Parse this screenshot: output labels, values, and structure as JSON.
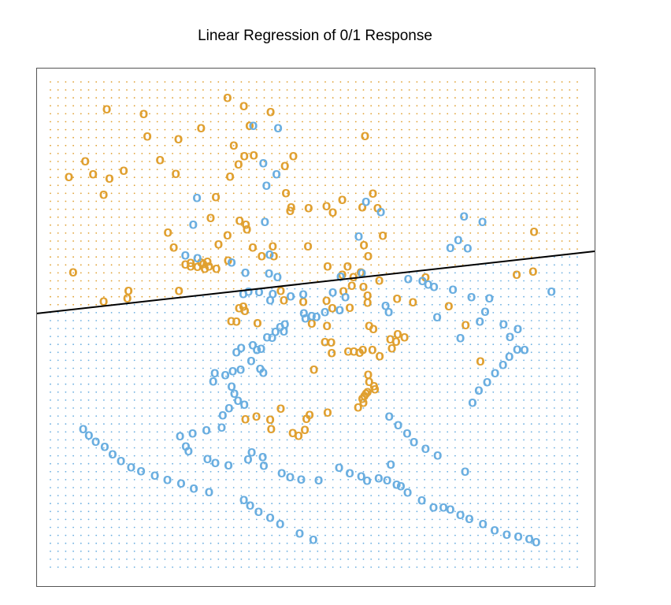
{
  "chart_data": {
    "type": "scatter",
    "title": "Linear Regression of 0/1 Response",
    "xlabel": "",
    "ylabel": "",
    "xlim": [
      0,
      100
    ],
    "ylim": [
      0,
      100
    ],
    "grid": false,
    "axes_shown": false,
    "marker_text": "o",
    "colors": {
      "class_0": "#6aaee0",
      "class_1": "#e0a030",
      "boundary": "#000000",
      "frame": "#555555"
    },
    "background_grid": {
      "nx": 70,
      "ny": 62
    },
    "decision_boundary": {
      "x": [
        0,
        100
      ],
      "y": [
        52.6,
        64.7
      ]
    },
    "series": [
      {
        "class": 1,
        "color": "#e0a030",
        "points": [
          [
            33.6,
            96.8
          ],
          [
            36.7,
            95.1
          ],
          [
            10.7,
            94.5
          ],
          [
            17.7,
            93.5
          ],
          [
            28.6,
            90.6
          ],
          [
            41.8,
            93.9
          ],
          [
            37.8,
            91.1
          ],
          [
            18.4,
            88.9
          ],
          [
            24.3,
            88.3
          ],
          [
            59.7,
            89.0
          ],
          [
            34.8,
            87.0
          ],
          [
            36.8,
            84.8
          ],
          [
            38.6,
            85.0
          ],
          [
            46.1,
            84.8
          ],
          [
            6.6,
            83.8
          ],
          [
            20.8,
            84.0
          ],
          [
            35.7,
            83.1
          ],
          [
            44.5,
            82.8
          ],
          [
            8.1,
            81.1
          ],
          [
            13.9,
            81.8
          ],
          [
            3.5,
            80.5
          ],
          [
            11.2,
            80.2
          ],
          [
            23.8,
            81.2
          ],
          [
            34.1,
            80.6
          ],
          [
            61.2,
            77.1
          ],
          [
            62.1,
            74.1
          ],
          [
            10.1,
            76.9
          ],
          [
            31.4,
            76.4
          ],
          [
            44.7,
            77.2
          ],
          [
            45.7,
            74.3
          ],
          [
            49.0,
            74.1
          ],
          [
            52.4,
            74.5
          ],
          [
            53.6,
            73.2
          ],
          [
            55.4,
            75.8
          ],
          [
            59.2,
            74.3
          ],
          [
            35.9,
            71.5
          ],
          [
            45.5,
            73.5
          ],
          [
            30.4,
            72.1
          ],
          [
            37.1,
            70.7
          ],
          [
            37.3,
            69.7
          ],
          [
            22.3,
            69.1
          ],
          [
            33.6,
            68.5
          ],
          [
            63.1,
            68.4
          ],
          [
            91.8,
            69.2
          ],
          [
            23.4,
            66.0
          ],
          [
            38.4,
            66.0
          ],
          [
            48.9,
            66.2
          ],
          [
            59.5,
            66.5
          ],
          [
            40.1,
            64.2
          ],
          [
            42.2,
            66.2
          ],
          [
            31.9,
            66.6
          ],
          [
            42.4,
            64.2
          ],
          [
            60.3,
            64.2
          ],
          [
            29.8,
            63.1
          ],
          [
            28.6,
            62.9
          ],
          [
            29.0,
            62.6
          ],
          [
            30.1,
            62.1
          ],
          [
            33.7,
            63.3
          ],
          [
            26.6,
            62.8
          ],
          [
            27.9,
            62.0
          ],
          [
            29.3,
            61.6
          ],
          [
            31.5,
            61.6
          ],
          [
            25.6,
            62.5
          ],
          [
            26.6,
            62.1
          ],
          [
            52.6,
            62.1
          ],
          [
            56.4,
            62.1
          ],
          [
            55.4,
            60.4
          ],
          [
            57.5,
            59.9
          ],
          [
            58.9,
            60.9
          ],
          [
            62.4,
            59.2
          ],
          [
            71.2,
            59.8
          ],
          [
            88.5,
            60.4
          ],
          [
            91.6,
            61.0
          ],
          [
            4.3,
            60.9
          ],
          [
            57.2,
            58.1
          ],
          [
            59.4,
            57.9
          ],
          [
            60.2,
            56.1
          ],
          [
            60.2,
            54.6
          ],
          [
            55.6,
            57.0
          ],
          [
            14.8,
            57.1
          ],
          [
            24.4,
            57.1
          ],
          [
            44.3,
            55.1
          ],
          [
            43.7,
            57.1
          ],
          [
            48.0,
            54.8
          ],
          [
            52.4,
            55.0
          ],
          [
            53.5,
            53.5
          ],
          [
            56.8,
            53.6
          ],
          [
            65.8,
            55.4
          ],
          [
            68.8,
            54.7
          ],
          [
            75.6,
            53.9
          ],
          [
            14.6,
            55.5
          ],
          [
            10.1,
            54.9
          ],
          [
            36.6,
            53.8
          ],
          [
            35.8,
            53.5
          ],
          [
            36.9,
            52.9
          ],
          [
            34.3,
            50.8
          ],
          [
            35.3,
            50.7
          ],
          [
            39.3,
            50.4
          ],
          [
            49.6,
            50.3
          ],
          [
            60.5,
            49.8
          ],
          [
            61.3,
            49.2
          ],
          [
            65.9,
            48.1
          ],
          [
            67.2,
            47.5
          ],
          [
            65.6,
            46.6
          ],
          [
            64.5,
            47.1
          ],
          [
            78.8,
            50.0
          ],
          [
            52.5,
            49.8
          ],
          [
            52.1,
            46.5
          ],
          [
            53.3,
            46.4
          ],
          [
            56.5,
            44.6
          ],
          [
            57.6,
            44.6
          ],
          [
            58.7,
            44.3
          ],
          [
            61.1,
            44.9
          ],
          [
            64.8,
            45.2
          ],
          [
            59.3,
            44.9
          ],
          [
            53.4,
            44.2
          ],
          [
            62.5,
            43.6
          ],
          [
            81.6,
            42.5
          ],
          [
            50.0,
            40.8
          ],
          [
            60.3,
            39.8
          ],
          [
            60.5,
            38.3
          ],
          [
            61.4,
            37.4
          ],
          [
            61.6,
            36.8
          ],
          [
            60.2,
            36.2
          ],
          [
            59.9,
            35.9
          ],
          [
            59.6,
            35.4
          ],
          [
            59.2,
            34.8
          ],
          [
            59.4,
            34.0
          ],
          [
            58.4,
            33.0
          ],
          [
            52.6,
            32.0
          ],
          [
            49.2,
            31.5
          ],
          [
            48.6,
            30.7
          ],
          [
            48.3,
            28.4
          ],
          [
            47.1,
            27.2
          ],
          [
            46.0,
            27.8
          ],
          [
            41.9,
            28.6
          ],
          [
            41.7,
            30.5
          ],
          [
            39.1,
            31.2
          ],
          [
            37.0,
            30.6
          ],
          [
            43.7,
            32.8
          ]
        ]
      },
      {
        "class": 0,
        "color": "#6aaee0",
        "points": [
          [
            38.5,
            91.1
          ],
          [
            43.2,
            90.6
          ],
          [
            40.4,
            83.4
          ],
          [
            42.9,
            81.1
          ],
          [
            41.0,
            78.7
          ],
          [
            27.8,
            76.2
          ],
          [
            59.9,
            75.4
          ],
          [
            62.7,
            73.3
          ],
          [
            78.5,
            72.4
          ],
          [
            82.0,
            71.3
          ],
          [
            27.1,
            70.7
          ],
          [
            40.7,
            71.3
          ],
          [
            58.5,
            68.3
          ],
          [
            77.4,
            67.5
          ],
          [
            75.9,
            65.9
          ],
          [
            79.2,
            65.8
          ],
          [
            25.6,
            64.4
          ],
          [
            27.9,
            63.8
          ],
          [
            41.6,
            64.5
          ],
          [
            34.4,
            62.9
          ],
          [
            37.0,
            60.8
          ],
          [
            41.5,
            60.6
          ],
          [
            43.1,
            59.9
          ],
          [
            55.1,
            60.0
          ],
          [
            59.1,
            60.7
          ],
          [
            67.9,
            59.5
          ],
          [
            70.6,
            59.1
          ],
          [
            72.8,
            57.9
          ],
          [
            71.7,
            58.4
          ],
          [
            76.4,
            57.3
          ],
          [
            79.9,
            55.8
          ],
          [
            83.3,
            55.5
          ],
          [
            95.1,
            56.9
          ],
          [
            36.6,
            56.4
          ],
          [
            37.6,
            56.9
          ],
          [
            39.6,
            56.8
          ],
          [
            42.2,
            56.4
          ],
          [
            41.7,
            55.1
          ],
          [
            45.6,
            55.9
          ],
          [
            48.0,
            56.3
          ],
          [
            53.6,
            56.7
          ],
          [
            56.0,
            55.8
          ],
          [
            63.6,
            54.0
          ],
          [
            54.9,
            53.1
          ],
          [
            52.1,
            52.7
          ],
          [
            50.5,
            51.7
          ],
          [
            49.6,
            51.9
          ],
          [
            48.1,
            52.4
          ],
          [
            48.4,
            51.4
          ],
          [
            64.2,
            52.7
          ],
          [
            73.4,
            51.6
          ],
          [
            81.5,
            50.7
          ],
          [
            82.5,
            52.8
          ],
          [
            86.0,
            50.2
          ],
          [
            88.7,
            49.2
          ],
          [
            87.2,
            47.6
          ],
          [
            77.8,
            47.3
          ],
          [
            44.5,
            50.2
          ],
          [
            44.3,
            48.7
          ],
          [
            43.6,
            49.6
          ],
          [
            42.7,
            48.6
          ],
          [
            42.1,
            47.4
          ],
          [
            41.1,
            47.5
          ],
          [
            40.0,
            45.1
          ],
          [
            39.2,
            44.9
          ],
          [
            38.4,
            45.9
          ],
          [
            36.2,
            45.3
          ],
          [
            35.3,
            44.4
          ],
          [
            38.1,
            42.6
          ],
          [
            39.8,
            41.0
          ],
          [
            40.4,
            40.2
          ],
          [
            36.1,
            40.8
          ],
          [
            34.6,
            40.5
          ],
          [
            33.2,
            39.7
          ],
          [
            31.2,
            40.1
          ],
          [
            30.9,
            38.4
          ],
          [
            34.4,
            37.3
          ],
          [
            34.9,
            35.9
          ],
          [
            35.6,
            34.4
          ],
          [
            36.8,
            33.6
          ],
          [
            33.9,
            32.9
          ],
          [
            32.7,
            31.4
          ],
          [
            32.5,
            28.9
          ],
          [
            29.6,
            28.3
          ],
          [
            27.0,
            27.7
          ],
          [
            24.6,
            27.1
          ],
          [
            25.7,
            25.0
          ],
          [
            26.2,
            24.0
          ],
          [
            29.8,
            22.4
          ],
          [
            31.3,
            21.6
          ],
          [
            33.8,
            21.1
          ],
          [
            37.5,
            22.3
          ],
          [
            38.2,
            23.8
          ],
          [
            40.3,
            22.8
          ],
          [
            40.5,
            21.0
          ],
          [
            43.9,
            19.5
          ],
          [
            45.5,
            18.7
          ],
          [
            47.6,
            18.2
          ],
          [
            50.9,
            18.0
          ],
          [
            54.8,
            20.6
          ],
          [
            56.8,
            19.5
          ],
          [
            59.0,
            18.8
          ],
          [
            60.1,
            17.9
          ],
          [
            62.3,
            18.4
          ],
          [
            63.9,
            18.0
          ],
          [
            65.7,
            17.1
          ],
          [
            66.5,
            16.8
          ],
          [
            67.8,
            15.5
          ],
          [
            70.5,
            13.9
          ],
          [
            72.7,
            12.4
          ],
          [
            74.6,
            12.4
          ],
          [
            75.9,
            12.0
          ],
          [
            77.8,
            10.9
          ],
          [
            79.5,
            10.1
          ],
          [
            82.1,
            9.0
          ],
          [
            84.3,
            7.7
          ],
          [
            86.6,
            6.8
          ],
          [
            88.8,
            6.4
          ],
          [
            90.9,
            5.9
          ],
          [
            92.2,
            5.3
          ],
          [
            49.9,
            5.8
          ],
          [
            47.3,
            7.1
          ],
          [
            43.6,
            9.0
          ],
          [
            41.7,
            10.3
          ],
          [
            39.5,
            11.5
          ],
          [
            37.9,
            12.8
          ],
          [
            36.7,
            14.0
          ],
          [
            30.1,
            15.6
          ],
          [
            27.2,
            16.3
          ],
          [
            24.8,
            17.4
          ],
          [
            22.2,
            18.1
          ],
          [
            19.8,
            19.0
          ],
          [
            17.2,
            19.9
          ],
          [
            15.3,
            20.7
          ],
          [
            13.4,
            22.0
          ],
          [
            11.8,
            23.4
          ],
          [
            10.3,
            24.9
          ],
          [
            8.6,
            26.0
          ],
          [
            7.3,
            27.3
          ],
          [
            6.2,
            28.6
          ],
          [
            78.7,
            19.8
          ],
          [
            64.6,
            21.3
          ],
          [
            73.5,
            23.1
          ],
          [
            71.2,
            24.5
          ],
          [
            69.0,
            25.9
          ],
          [
            67.7,
            27.7
          ],
          [
            66.0,
            29.4
          ],
          [
            64.3,
            31.2
          ],
          [
            80.1,
            34.0
          ],
          [
            81.3,
            36.5
          ],
          [
            82.9,
            38.2
          ],
          [
            84.4,
            40.1
          ],
          [
            85.9,
            41.8
          ],
          [
            87.1,
            43.5
          ],
          [
            88.6,
            45.0
          ],
          [
            90.0,
            44.9
          ]
        ]
      }
    ]
  }
}
